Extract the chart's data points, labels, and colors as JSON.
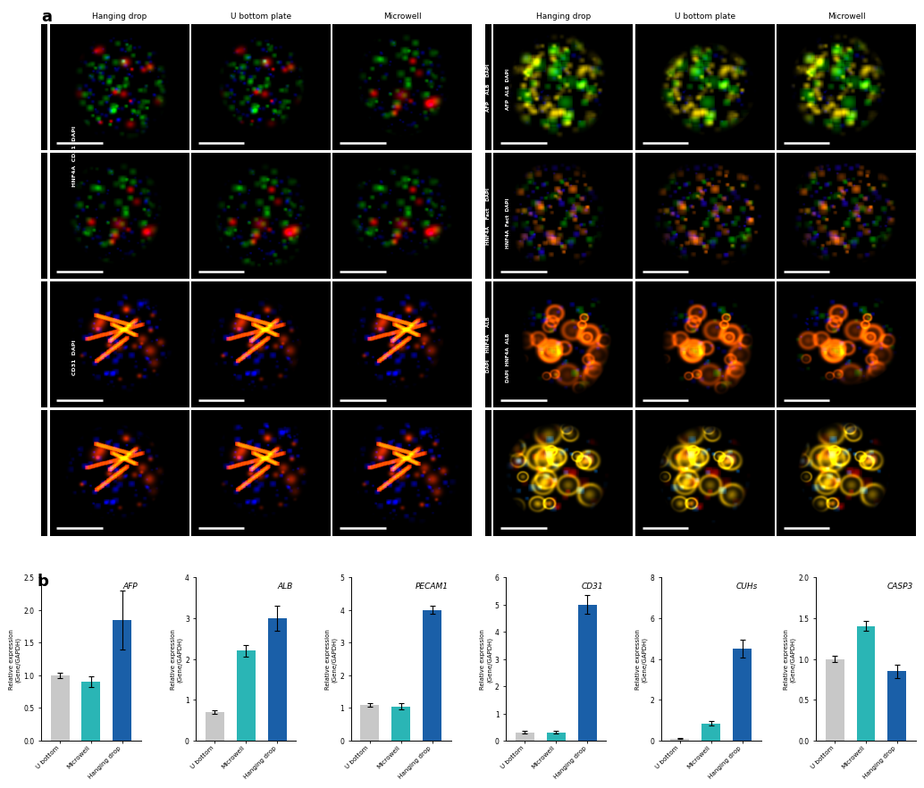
{
  "bar_data": {
    "AFP": {
      "ylim": [
        0,
        2.5
      ],
      "yticks": [
        0.0,
        0.5,
        1.0,
        1.5,
        2.0,
        2.5
      ],
      "values": [
        1.0,
        0.9,
        1.85
      ],
      "errors": [
        0.04,
        0.08,
        0.45
      ]
    },
    "ALB": {
      "ylim": [
        0,
        4
      ],
      "yticks": [
        0,
        1,
        2,
        3,
        4
      ],
      "values": [
        0.7,
        2.2,
        3.0
      ],
      "errors": [
        0.05,
        0.15,
        0.3
      ]
    },
    "PECAM1": {
      "ylim": [
        0,
        5
      ],
      "yticks": [
        0,
        1,
        2,
        3,
        4,
        5
      ],
      "values": [
        1.1,
        1.05,
        4.0
      ],
      "errors": [
        0.05,
        0.1,
        0.12
      ]
    },
    "CD31": {
      "ylim": [
        0,
        6
      ],
      "yticks": [
        0,
        1,
        2,
        3,
        4,
        5,
        6
      ],
      "values": [
        0.3,
        0.3,
        5.0
      ],
      "errors": [
        0.05,
        0.05,
        0.35
      ]
    },
    "CUHs": {
      "ylim": [
        0,
        8
      ],
      "yticks": [
        0,
        2,
        4,
        6,
        8
      ],
      "values": [
        0.1,
        0.85,
        4.5
      ],
      "errors": [
        0.02,
        0.1,
        0.45
      ]
    },
    "CASP3": {
      "ylim": [
        0.0,
        2.0
      ],
      "yticks": [
        0.0,
        0.5,
        1.0,
        1.5,
        2.0
      ],
      "values": [
        1.0,
        1.4,
        0.85
      ],
      "errors": [
        0.04,
        0.06,
        0.08
      ]
    }
  },
  "bar_colors": [
    "#c8c8c8",
    "#2ab5b5",
    "#1a5fa8"
  ],
  "categories": [
    "U bottom",
    "Microwell",
    "Hanging drop"
  ],
  "ylabel": "Relative expression\n(Gene/GAPDH)",
  "left_col_labels": [
    "Hanging drop",
    "U bottom plate",
    "Microwell"
  ],
  "right_col_labels": [
    "Hanging drop",
    "U bottom plate",
    "Microwell"
  ],
  "left_row_label_1": "HNF4A  CD31  DAPI",
  "left_row_label_2": "CD31  DAPI",
  "right_row_label_1": "AFP  ALB  DAPI",
  "right_row_label_2": "HNF4A  Fact  DAPI",
  "right_row_label_3": "DAPI  HNF4A  ALB",
  "right_row_label_4": ""
}
